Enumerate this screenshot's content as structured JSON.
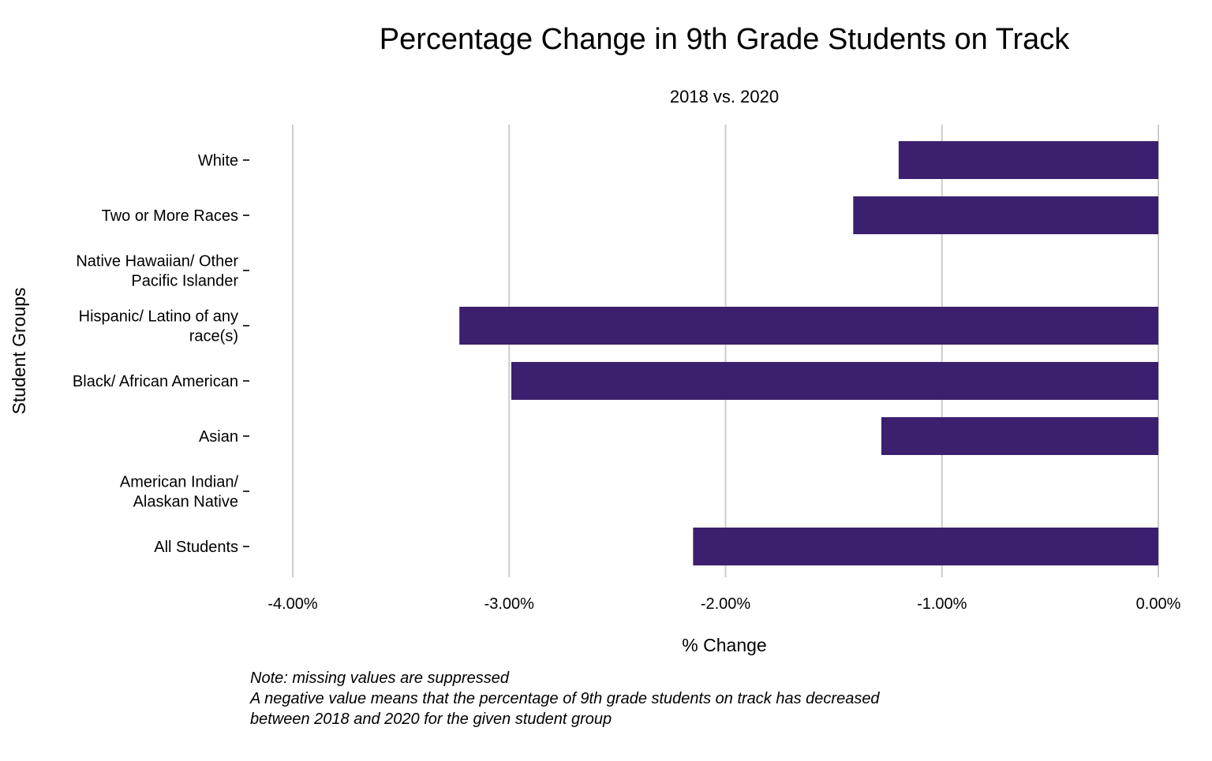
{
  "chart_data": {
    "type": "bar",
    "orientation": "horizontal",
    "title": "Percentage Change in 9th Grade Students on Track",
    "subtitle": "2018 vs. 2020",
    "xlabel": "% Change",
    "ylabel": "Student Groups",
    "xlim": [
      -4.0,
      0.0
    ],
    "x_ticks": [
      {
        "value": -4.0,
        "label": "-4.00%"
      },
      {
        "value": -3.0,
        "label": "-3.00%"
      },
      {
        "value": -2.0,
        "label": "-2.00%"
      },
      {
        "value": -1.0,
        "label": "-1.00%"
      },
      {
        "value": 0.0,
        "label": "0.00%"
      }
    ],
    "categories": [
      [
        "White"
      ],
      [
        "Two or More Races"
      ],
      [
        "Native Hawaiian/ Other",
        "Pacific Islander"
      ],
      [
        "Hispanic/ Latino of any",
        "race(s)"
      ],
      [
        "Black/ African American"
      ],
      [
        "Asian"
      ],
      [
        "American Indian/",
        "Alaskan Native"
      ],
      [
        "All Students"
      ]
    ],
    "values": [
      -1.2,
      -1.41,
      null,
      -3.23,
      -2.99,
      -1.28,
      null,
      -2.15
    ],
    "bar_color": "#3c1f6e",
    "grid": true,
    "legend": "none",
    "caption": [
      "Note: missing values are suppressed",
      "A negative value means that the percentage of 9th grade students on track has decreased",
      "between 2018 and 2020 for the given student group"
    ]
  }
}
